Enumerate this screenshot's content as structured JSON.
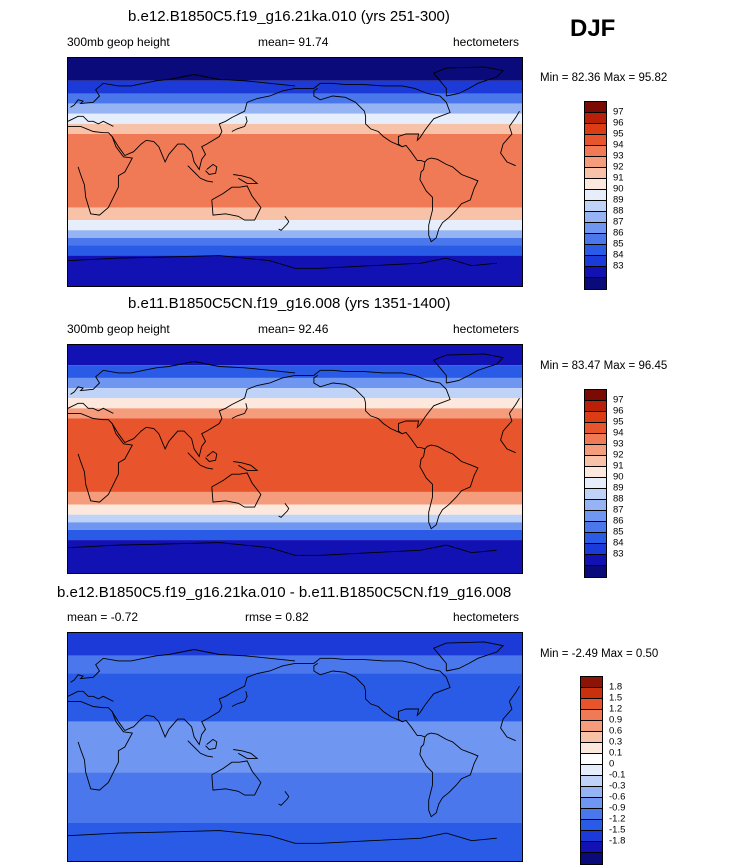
{
  "season": "DJF",
  "colors": {
    "abs_scale": [
      "#0a0a7a",
      "#1212b4",
      "#1c3ad8",
      "#2a5be6",
      "#4a78ec",
      "#6f96f0",
      "#96b4f4",
      "#bfd2f8",
      "#e6eefc",
      "#fce8dc",
      "#f8c2a8",
      "#f59c7c",
      "#f07a55",
      "#e8552c",
      "#dc3c14",
      "#b8200a",
      "#7a0a04"
    ],
    "diff_scale": [
      "#0a0a7a",
      "#1212b4",
      "#1c3ad8",
      "#2a5be6",
      "#4a78ec",
      "#6f96f0",
      "#96b4f4",
      "#bfd2f8",
      "#e6eefc",
      "#ffffff",
      "#fce8dc",
      "#f8c2a8",
      "#f59c7c",
      "#f07a55",
      "#e8552c",
      "#c8300e",
      "#8c1406"
    ]
  },
  "chart_data": [
    {
      "type": "heatmap",
      "title": "b.e12.B1850C5.f19_g16.21ka.010 (yrs 251-300)",
      "left_label": "300mb geop height",
      "mean_label": "mean=",
      "mean": "91.74",
      "units": "hectometers",
      "min_label": "Min =",
      "min": "82.36",
      "max_label": "Max =",
      "max": "95.82",
      "colorbar_labels": [
        "97",
        "96",
        "95",
        "94",
        "93",
        "92",
        "91",
        "90",
        "89",
        "88",
        "87",
        "86",
        "85",
        "84",
        "83"
      ],
      "x_range_deg": [
        0,
        360
      ],
      "y_range_deg": [
        -90,
        90
      ],
      "bands": [
        {
          "lat_min": 72,
          "lat_max": 90,
          "value": 83
        },
        {
          "lat_min": 62,
          "lat_max": 72,
          "value": 85
        },
        {
          "lat_min": 54,
          "lat_max": 62,
          "value": 87
        },
        {
          "lat_min": 46,
          "lat_max": 54,
          "value": 89
        },
        {
          "lat_min": 38,
          "lat_max": 46,
          "value": 91
        },
        {
          "lat_min": 30,
          "lat_max": 38,
          "value": 93
        },
        {
          "lat_min": -28,
          "lat_max": 30,
          "value": 95
        },
        {
          "lat_min": -38,
          "lat_max": -28,
          "value": 93
        },
        {
          "lat_min": -46,
          "lat_max": -38,
          "value": 91
        },
        {
          "lat_min": -52,
          "lat_max": -46,
          "value": 89
        },
        {
          "lat_min": -58,
          "lat_max": -52,
          "value": 87
        },
        {
          "lat_min": -66,
          "lat_max": -58,
          "value": 86
        },
        {
          "lat_min": -90,
          "lat_max": -66,
          "value": 84
        }
      ]
    },
    {
      "type": "heatmap",
      "title": "b.e11.B1850C5CN.f19_g16.008 (yrs 1351-1400)",
      "left_label": "300mb geop height",
      "mean_label": "mean=",
      "mean": "92.46",
      "units": "hectometers",
      "min_label": "Min =",
      "min": "83.47",
      "max_label": "Max =",
      "max": "96.45",
      "colorbar_labels": [
        "97",
        "96",
        "95",
        "94",
        "93",
        "92",
        "91",
        "90",
        "89",
        "88",
        "87",
        "86",
        "85",
        "84",
        "83"
      ],
      "x_range_deg": [
        0,
        360
      ],
      "y_range_deg": [
        -90,
        90
      ],
      "bands": [
        {
          "lat_min": 74,
          "lat_max": 90,
          "value": 84
        },
        {
          "lat_min": 64,
          "lat_max": 74,
          "value": 86
        },
        {
          "lat_min": 56,
          "lat_max": 64,
          "value": 88
        },
        {
          "lat_min": 48,
          "lat_max": 56,
          "value": 90
        },
        {
          "lat_min": 40,
          "lat_max": 48,
          "value": 92
        },
        {
          "lat_min": 32,
          "lat_max": 40,
          "value": 94
        },
        {
          "lat_min": -26,
          "lat_max": 32,
          "value": 96
        },
        {
          "lat_min": -36,
          "lat_max": -26,
          "value": 94
        },
        {
          "lat_min": -44,
          "lat_max": -36,
          "value": 92
        },
        {
          "lat_min": -50,
          "lat_max": -44,
          "value": 90
        },
        {
          "lat_min": -56,
          "lat_max": -50,
          "value": 88
        },
        {
          "lat_min": -64,
          "lat_max": -56,
          "value": 86
        },
        {
          "lat_min": -90,
          "lat_max": -64,
          "value": 84
        }
      ]
    },
    {
      "type": "heatmap",
      "title": "b.e12.B1850C5.f19_g16.21ka.010 - b.e11.B1850C5CN.f19_g16.008",
      "left_label": "mean =",
      "left_value": "-0.72",
      "mean_label": "rmse =",
      "mean": "0.82",
      "units": "hectometers",
      "min_label": "Min =",
      "min": "-2.49",
      "max_label": "Max =",
      "max": "0.50",
      "colorbar_labels": [
        "1.8",
        "1.5",
        "1.2",
        "0.9",
        "0.6",
        "0.3",
        "0.1",
        "0",
        "-0.1",
        "-0.3",
        "-0.6",
        "-0.9",
        "-1.2",
        "-1.5",
        "-1.8"
      ],
      "x_range_deg": [
        0,
        360
      ],
      "y_range_deg": [
        -90,
        90
      ],
      "bands": [
        {
          "lat_min": 72,
          "lat_max": 90,
          "value": -1.3
        },
        {
          "lat_min": 58,
          "lat_max": 72,
          "value": -0.8
        },
        {
          "lat_min": 20,
          "lat_max": 58,
          "value": -0.9
        },
        {
          "lat_min": -20,
          "lat_max": 20,
          "value": -0.5
        },
        {
          "lat_min": -60,
          "lat_max": -20,
          "value": -0.7
        },
        {
          "lat_min": -90,
          "lat_max": -60,
          "value": -0.9
        }
      ]
    }
  ]
}
